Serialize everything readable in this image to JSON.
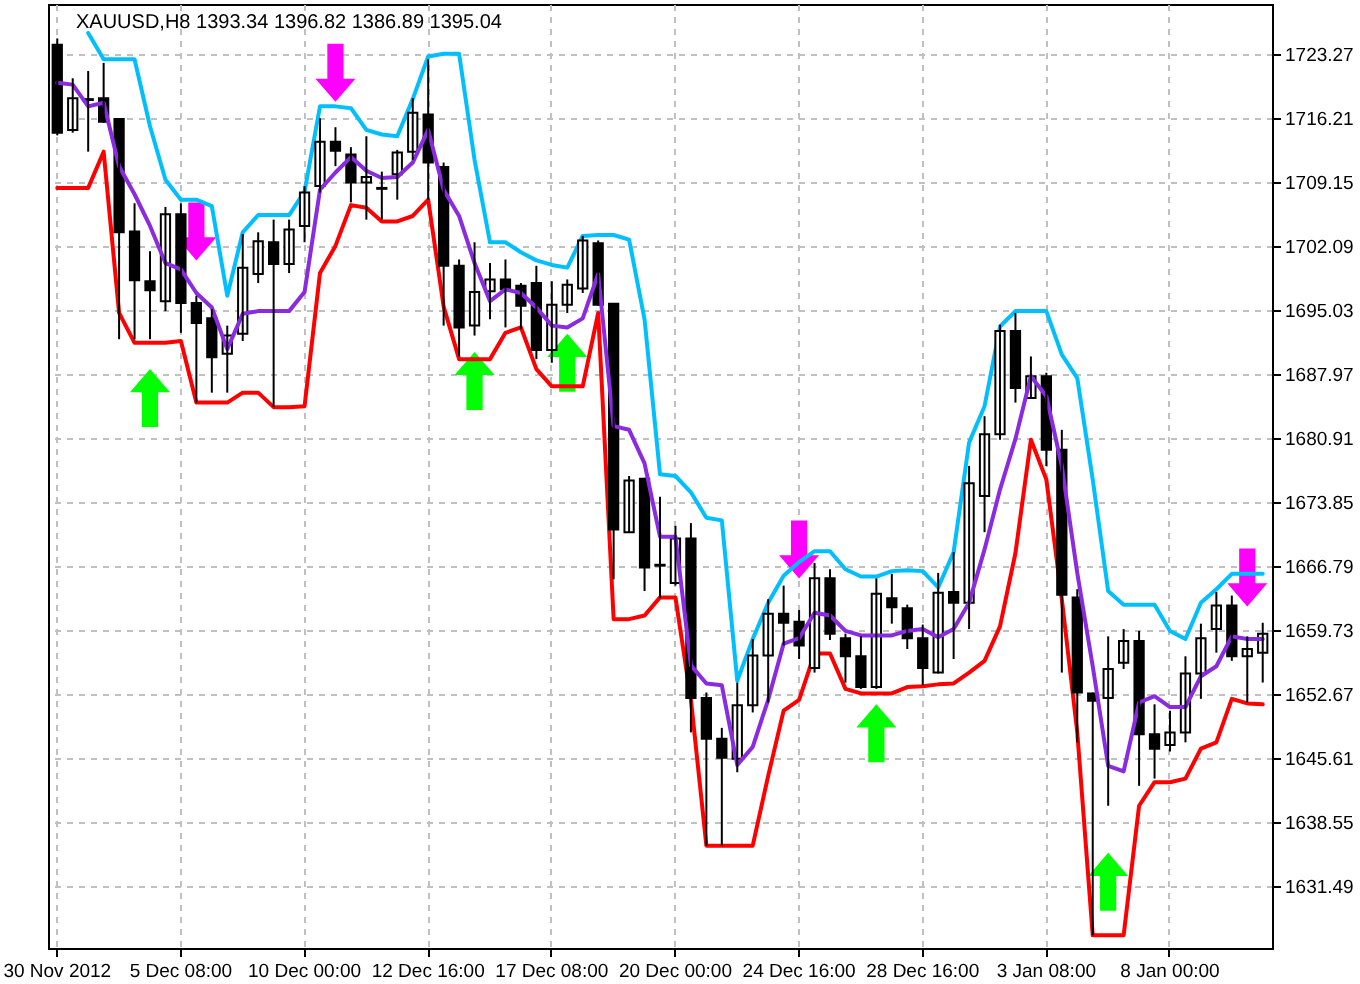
{
  "chart_data": {
    "type": "candlestick",
    "title": "XAUUSD,H8 1393.34 1396.82 1386.89 1395.04",
    "categories": [
      "30 Nov 2012",
      null,
      null,
      null,
      null,
      null,
      null,
      null,
      "5 Dec 08:00",
      null,
      null,
      null,
      null,
      null,
      null,
      null,
      "10 Dec 00:00",
      null,
      null,
      null,
      null,
      null,
      null,
      null,
      "12 Dec 16:00",
      null,
      null,
      null,
      null,
      null,
      null,
      null,
      "17 Dec 08:00",
      null,
      null,
      null,
      null,
      null,
      null,
      null,
      "20 Dec 00:00",
      null,
      null,
      null,
      null,
      null,
      null,
      null,
      "24 Dec 16:00",
      null,
      null,
      null,
      null,
      null,
      null,
      null,
      "28 Dec 16:00",
      null,
      null,
      null,
      null,
      null,
      null,
      null,
      "3 Jan 08:00",
      null,
      null,
      null,
      null,
      null,
      null,
      null,
      "8 Jan 00:00",
      null,
      null,
      null,
      null,
      null,
      null
    ],
    "ohlc": [
      [
        1724.3,
        1725.0,
        1714.3,
        1714.6
      ],
      [
        1714.9,
        1720.6,
        1714.6,
        1718.4
      ],
      [
        1718.2,
        1721.4,
        1712.5,
        1718.3
      ],
      [
        1718.4,
        1722.3,
        1715.7,
        1715.8
      ],
      [
        1716.1,
        1716.2,
        1691.8,
        1703.6
      ],
      [
        1703.7,
        1706.8,
        1691.8,
        1698.3
      ],
      [
        1698.2,
        1701.5,
        1691.8,
        1697.2
      ],
      [
        1696.0,
        1706.4,
        1694.9,
        1705.6
      ],
      [
        1705.6,
        1706.8,
        1692.5,
        1695.8
      ],
      [
        1695.8,
        1696.6,
        1684.8,
        1693.6
      ],
      [
        1694.1,
        1695.1,
        1685.9,
        1689.8
      ],
      [
        1690.2,
        1693.3,
        1685.9,
        1692.2
      ],
      [
        1692.4,
        1703.4,
        1691.6,
        1699.7
      ],
      [
        1699.0,
        1703.6,
        1698.0,
        1702.6
      ],
      [
        1702.5,
        1705.0,
        1684.3,
        1700.1
      ],
      [
        1700.1,
        1705.0,
        1699.1,
        1703.9
      ],
      [
        1704.3,
        1708.7,
        1702.5,
        1708.0
      ],
      [
        1708.7,
        1716.2,
        1708.0,
        1713.6
      ],
      [
        1713.6,
        1715.2,
        1710.9,
        1712.6
      ],
      [
        1712.2,
        1713.0,
        1706.9,
        1709.1
      ],
      [
        1709.1,
        1714.2,
        1705.0,
        1709.7
      ],
      [
        1708.4,
        1710.3,
        1705.0,
        1708.5
      ],
      [
        1710.0,
        1712.7,
        1707.2,
        1712.4
      ],
      [
        1712.5,
        1718.4,
        1711.6,
        1716.8
      ],
      [
        1716.6,
        1722.7,
        1707.2,
        1711.3
      ],
      [
        1710.8,
        1711.3,
        1693.3,
        1699.9
      ],
      [
        1699.9,
        1700.6,
        1689.9,
        1693.1
      ],
      [
        1693.3,
        1702.5,
        1692.2,
        1697.0
      ],
      [
        1697.1,
        1700.2,
        1694.0,
        1698.4
      ],
      [
        1698.4,
        1700.6,
        1693.1,
        1697.3
      ],
      [
        1697.7,
        1698.0,
        1692.9,
        1695.5
      ],
      [
        1698.0,
        1699.9,
        1689.6,
        1690.6
      ],
      [
        1690.6,
        1698.2,
        1689.2,
        1695.6
      ],
      [
        1695.6,
        1698.4,
        1694.7,
        1697.8
      ],
      [
        1697.4,
        1703.2,
        1696.9,
        1702.7
      ],
      [
        1702.4,
        1702.7,
        1695.5,
        1695.6
      ],
      [
        1695.7,
        1695.8,
        1665.3,
        1670.8
      ],
      [
        1670.5,
        1676.7,
        1670.5,
        1676.2
      ],
      [
        1676.4,
        1676.5,
        1664.0,
        1666.6
      ],
      [
        1666.9,
        1674.4,
        1663.2,
        1666.8
      ],
      [
        1664.9,
        1671.2,
        1664.6,
        1669.8
      ],
      [
        1669.8,
        1671.5,
        1648.4,
        1652.2
      ],
      [
        1652.2,
        1652.8,
        1635.9,
        1647.7
      ],
      [
        1647.7,
        1648.9,
        1635.9,
        1645.6
      ],
      [
        1645.5,
        1653.9,
        1644.0,
        1651.4
      ],
      [
        1651.4,
        1658.7,
        1650.6,
        1656.9
      ],
      [
        1656.9,
        1663.1,
        1651.7,
        1661.5
      ],
      [
        1661.5,
        1664.6,
        1658.0,
        1660.5
      ],
      [
        1660.6,
        1661.9,
        1656.5,
        1658.0
      ],
      [
        1655.5,
        1667.1,
        1655.0,
        1665.4
      ],
      [
        1665.4,
        1666.4,
        1658.6,
        1659.3
      ],
      [
        1658.8,
        1659.3,
        1653.9,
        1656.8
      ],
      [
        1656.8,
        1659.0,
        1653.2,
        1653.4
      ],
      [
        1653.4,
        1665.4,
        1653.2,
        1663.7
      ],
      [
        1663.2,
        1665.9,
        1660.4,
        1662.2
      ],
      [
        1662.1,
        1662.5,
        1657.6,
        1658.8
      ],
      [
        1658.8,
        1660.3,
        1653.6,
        1655.5
      ],
      [
        1655.0,
        1666.0,
        1654.9,
        1663.8
      ],
      [
        1663.9,
        1668.3,
        1656.5,
        1662.7
      ],
      [
        1662.7,
        1677.8,
        1659.8,
        1675.9
      ],
      [
        1674.5,
        1683.3,
        1670.5,
        1681.3
      ],
      [
        1681.3,
        1693.4,
        1680.7,
        1692.7
      ],
      [
        1692.7,
        1694.7,
        1684.8,
        1686.4
      ],
      [
        1685.3,
        1689.9,
        1685.2,
        1687.7
      ],
      [
        1687.7,
        1688.1,
        1677.8,
        1679.6
      ],
      [
        1679.6,
        1681.8,
        1655.0,
        1663.6
      ],
      [
        1663.3,
        1664.2,
        1647.3,
        1652.8
      ],
      [
        1652.7,
        1652.8,
        1626.0,
        1651.9
      ],
      [
        1652.2,
        1659.0,
        1640.3,
        1655.4
      ],
      [
        1656.1,
        1659.8,
        1655.4,
        1658.5
      ],
      [
        1658.5,
        1659.6,
        1642.5,
        1648.2
      ],
      [
        1648.2,
        1651.5,
        1643.3,
        1646.6
      ],
      [
        1647.0,
        1650.8,
        1646.3,
        1648.4
      ],
      [
        1648.4,
        1656.8,
        1647.3,
        1654.9
      ],
      [
        1654.9,
        1660.4,
        1652.1,
        1658.8
      ],
      [
        1659.8,
        1663.9,
        1657.2,
        1662.4
      ],
      [
        1662.4,
        1663.5,
        1656.3,
        1656.8
      ],
      [
        1656.8,
        1659.0,
        1651.7,
        1657.6
      ],
      [
        1657.2,
        1660.5,
        1653.9,
        1659.3
      ]
    ],
    "series": [
      {
        "type": "line",
        "color": "#00bfff",
        "values": [
          null,
          null,
          1725.6,
          1722.7,
          1722.7,
          1722.7,
          1715.3,
          1709.4,
          1707.2,
          1707.2,
          1706.5,
          1696.6,
          1703.6,
          1705.5,
          1705.5,
          1705.5,
          1708.1,
          1717.5,
          1717.5,
          1717.3,
          1714.9,
          1714.4,
          1714.2,
          1718.3,
          1723.0,
          1723.3,
          1723.3,
          1711.6,
          1702.5,
          1702.5,
          1701.4,
          1700.5,
          1700.0,
          1699.7,
          1703.2,
          1703.3,
          1703.3,
          1702.8,
          1694.0,
          1676.9,
          1676.7,
          1674.9,
          1672.1,
          1671.8,
          1654.1,
          1658.7,
          1662.7,
          1665.7,
          1667.2,
          1668.4,
          1668.4,
          1666.4,
          1665.6,
          1665.6,
          1666.2,
          1666.3,
          1666.2,
          1664.4,
          1668.3,
          1680.4,
          1684.4,
          1693.2,
          1694.9,
          1694.9,
          1694.9,
          1690.1,
          1687.5,
          1676.3,
          1664.0,
          1662.5,
          1662.5,
          1662.5,
          1659.6,
          1658.7,
          1662.7,
          1664.2,
          1665.9,
          1665.9,
          1665.9
        ]
      },
      {
        "type": "line",
        "color": "#ff0000",
        "values": [
          1708.5,
          1708.5,
          1708.5,
          1712.5,
          1694.7,
          1691.4,
          1691.4,
          1691.4,
          1691.6,
          1684.8,
          1684.8,
          1684.8,
          1685.9,
          1685.9,
          1684.3,
          1684.3,
          1684.4,
          1699.1,
          1702.1,
          1706.6,
          1706.3,
          1704.8,
          1704.8,
          1705.4,
          1707.2,
          1695.4,
          1689.6,
          1689.6,
          1689.6,
          1692.5,
          1693.1,
          1688.5,
          1686.6,
          1686.6,
          1686.6,
          1694.7,
          1660.9,
          1660.9,
          1661.3,
          1663.3,
          1663.3,
          1652.0,
          1635.9,
          1635.9,
          1635.9,
          1635.9,
          1643.6,
          1650.8,
          1652.0,
          1657.1,
          1657.1,
          1653.2,
          1652.7,
          1652.7,
          1652.7,
          1653.4,
          1653.5,
          1653.7,
          1653.8,
          1655.0,
          1656.3,
          1660.1,
          1668.2,
          1680.7,
          1676.3,
          1663.1,
          1648.4,
          1626.0,
          1626.0,
          1626.0,
          1640.3,
          1642.9,
          1642.9,
          1643.3,
          1646.6,
          1647.3,
          1652.1,
          1651.6,
          1651.5
        ]
      },
      {
        "type": "line",
        "color": "#8a2be2",
        "values": [
          1720.1,
          1719.9,
          1717.5,
          1717.9,
          1710.9,
          1707.8,
          1704.3,
          1700.2,
          1699.5,
          1696.9,
          1695.3,
          1690.7,
          1694.6,
          1694.9,
          1694.9,
          1694.9,
          1697.0,
          1708.3,
          1710.2,
          1711.9,
          1710.4,
          1709.6,
          1709.7,
          1711.3,
          1714.9,
          1708.3,
          1705.4,
          1700.2,
          1696.0,
          1697.3,
          1696.9,
          1695.3,
          1693.3,
          1693.1,
          1694.1,
          1699.0,
          1682.2,
          1681.8,
          1678.1,
          1670.0,
          1670.0,
          1655.8,
          1653.8,
          1653.6,
          1644.8,
          1646.8,
          1652.0,
          1658.2,
          1658.8,
          1661.6,
          1661.3,
          1659.6,
          1659.1,
          1659.1,
          1659.1,
          1659.6,
          1659.8,
          1658.9,
          1659.8,
          1662.7,
          1668.6,
          1675.2,
          1680.8,
          1687.7,
          1685.5,
          1677.8,
          1666.0,
          1655.7,
          1644.7,
          1644.1,
          1651.7,
          1652.4,
          1651.2,
          1651.2,
          1654.6,
          1655.7,
          1659.0,
          1658.7,
          1658.7
        ]
      },
      {
        "type": "scatter",
        "color": "#ff00ff",
        "marker": "triangle",
        "values": [
          null,
          null,
          null,
          null,
          null,
          null,
          null,
          null,
          null,
          1703.7,
          null,
          null,
          null,
          null,
          null,
          null,
          null,
          null,
          1721.2,
          null,
          null,
          null,
          null,
          null,
          null,
          null,
          null,
          null,
          null,
          null,
          null,
          null,
          null,
          null,
          null,
          null,
          null,
          null,
          null,
          null,
          null,
          null,
          null,
          null,
          null,
          null,
          null,
          null,
          1668.6,
          null,
          null,
          null,
          null,
          null,
          null,
          null,
          null,
          null,
          null,
          null,
          null,
          null,
          null,
          null,
          null,
          null,
          null,
          null,
          null,
          null,
          null,
          null,
          null,
          null,
          null,
          null,
          null,
          1665.5,
          null
        ]
      },
      {
        "type": "scatter",
        "color": "#00ff00",
        "marker": "triangle",
        "values": [
          null,
          null,
          null,
          null,
          null,
          null,
          1685.3,
          null,
          null,
          null,
          null,
          null,
          null,
          null,
          null,
          null,
          null,
          null,
          null,
          null,
          null,
          null,
          null,
          null,
          null,
          null,
          null,
          1687.2,
          null,
          null,
          null,
          null,
          null,
          1689.2,
          null,
          null,
          null,
          null,
          null,
          null,
          null,
          null,
          null,
          null,
          null,
          null,
          null,
          null,
          null,
          null,
          null,
          null,
          null,
          1648.3,
          null,
          null,
          null,
          null,
          null,
          null,
          null,
          null,
          null,
          null,
          null,
          null,
          null,
          null,
          1631.9,
          null,
          null,
          null,
          null,
          null,
          null,
          null,
          null,
          null,
          null
        ]
      }
    ],
    "ylim": [
      1624.6,
      1728.8
    ],
    "yticks": [
      1631.49,
      1638.55,
      1645.61,
      1652.67,
      1659.73,
      1666.79,
      1673.85,
      1680.91,
      1687.97,
      1695.03,
      1702.09,
      1709.15,
      1716.21,
      1723.27
    ],
    "grid": true
  }
}
